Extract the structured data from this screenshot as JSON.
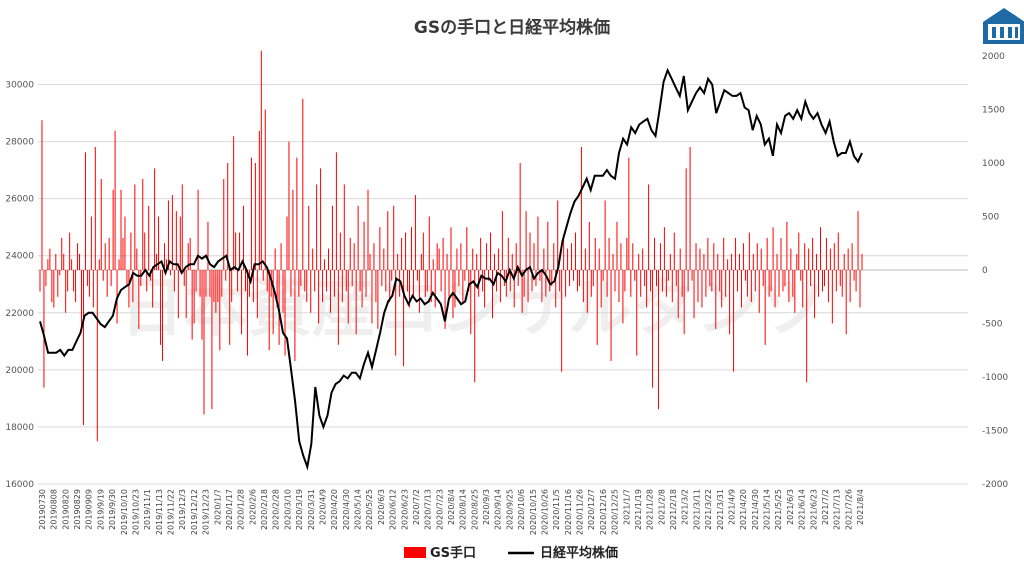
{
  "chart_data": {
    "type": "bar+line",
    "title": "GSの手口と日経平均株価",
    "watermark": "日本資産コンサルタンツ",
    "left_axis": {
      "ticks": [
        16000,
        18000,
        20000,
        22000,
        24000,
        26000,
        28000,
        30000
      ],
      "ylim": [
        16000,
        31000
      ]
    },
    "right_axis": {
      "ticks": [
        -2000,
        -1500,
        -1000,
        -500,
        0,
        500,
        1000,
        1500,
        2000
      ],
      "ylim": [
        -2000,
        2000
      ]
    },
    "x_tick_labels": [
      "20190730",
      "20190808",
      "20190820",
      "20190829",
      "20190909",
      "2019/9/19",
      "2019/9/30",
      "2019/10/10",
      "2019/10/23",
      "2019/11/1",
      "2019/11/13",
      "2019/11/22",
      "2019/12/3",
      "2019/12/12",
      "2019/12/23",
      "2020/1/7",
      "2020/1/17",
      "2020/1/28",
      "2020/2/6",
      "2020/2/18",
      "2020/2/28",
      "2020/3/10",
      "2020/3/19",
      "2020/3/31",
      "2020/4/9",
      "2020/4/20",
      "2020/4/30",
      "2020/5/14",
      "2020/5/25",
      "2020/6/3",
      "2020/6/12",
      "2020/6/23",
      "2020/7/2",
      "2020/7/13",
      "2020/7/23",
      "2020/8/4",
      "2020/8/14",
      "2020/8/25",
      "2020/9/3",
      "2020/9/14",
      "2020/9/25",
      "2020/10/6",
      "2020/10/15",
      "2020/10/26",
      "2020/11/5",
      "2020/11/16",
      "2020/11/26",
      "2020/12/7",
      "2020/12/16",
      "2020/12/25",
      "2021/1/7",
      "2021/1/19",
      "2021/1/28",
      "2021/2/8",
      "2021/2/18",
      "2021/3/2",
      "2021/3/11",
      "2021/3/22",
      "2021/3/31",
      "2021/4/9",
      "2021/4/20",
      "2021/4/30",
      "2021/5/14",
      "2021/5/25",
      "2021/6/3",
      "2021/6/14",
      "2021/6/23",
      "2021/7/2",
      "2021/7/13",
      "2021/7/26",
      "2021/8/4"
    ],
    "series": [
      {
        "name": "GS手口",
        "type": "bar",
        "axis": "right",
        "color": "#ff0000",
        "values": [
          -200,
          1400,
          -1100,
          -150,
          100,
          200,
          -300,
          -350,
          150,
          -250,
          -50,
          300,
          150,
          -400,
          -200,
          350,
          100,
          -200,
          -300,
          250,
          150,
          -550,
          -1450,
          1100,
          -150,
          -250,
          500,
          -350,
          1150,
          -1600,
          100,
          850,
          -100,
          250,
          -250,
          300,
          -150,
          750,
          1300,
          -500,
          100,
          750,
          300,
          500,
          -150,
          -350,
          350,
          -300,
          800,
          200,
          -550,
          -150,
          850,
          350,
          -200,
          600,
          -100,
          -350,
          950,
          150,
          500,
          -700,
          -850,
          250,
          100,
          650,
          -50,
          700,
          -200,
          550,
          -450,
          500,
          800,
          -150,
          -450,
          250,
          300,
          -650,
          -500,
          -200,
          750,
          -250,
          -650,
          -1350,
          -250,
          450,
          -250,
          -1300,
          -300,
          -400,
          -300,
          -750,
          -250,
          850,
          -100,
          1000,
          -700,
          -300,
          1250,
          350,
          -200,
          350,
          -600,
          600,
          -200,
          -800,
          -250,
          1050,
          -300,
          1000,
          -450,
          1300,
          2050,
          -100,
          1500,
          -200,
          -750,
          -250,
          -600,
          200,
          -350,
          -700,
          250,
          -400,
          -800,
          500,
          1200,
          -250,
          750,
          -850,
          1050,
          -250,
          -150,
          1600,
          -200,
          -300,
          600,
          -400,
          200,
          -200,
          800,
          -500,
          950,
          -300,
          100,
          -200,
          200,
          -400,
          600,
          -250,
          1100,
          -700,
          350,
          -300,
          800,
          -200,
          -500,
          300,
          -150,
          250,
          -600,
          600,
          -200,
          -350,
          450,
          -250,
          750,
          150,
          -500,
          250,
          -300,
          -550,
          400,
          -150,
          200,
          -200,
          550,
          -300,
          -100,
          600,
          -800,
          150,
          -250,
          300,
          -900,
          350,
          -200,
          -350,
          400,
          -250,
          700,
          -100,
          -400,
          150,
          350,
          -250,
          -200,
          500,
          -300,
          100,
          -350,
          250,
          200,
          -200,
          300,
          -550,
          150,
          -250,
          400,
          -450,
          -350,
          200,
          -150,
          250,
          -300,
          -100,
          400,
          -200,
          -600,
          200,
          -1050,
          150,
          -250,
          300,
          -200,
          -350,
          250,
          -100,
          350,
          -450,
          150,
          -200,
          200,
          -300,
          550,
          -150,
          -250,
          300,
          -200,
          150,
          -350,
          250,
          -150,
          1000,
          -400,
          -250,
          550,
          -300,
          350,
          -200,
          250,
          -150,
          500,
          -100,
          -300,
          200,
          -250,
          450,
          -200,
          -150,
          250,
          -350,
          650,
          -200,
          -950,
          300,
          -250,
          200,
          -150,
          250,
          -100,
          350,
          -200,
          -150,
          1150,
          -300,
          200,
          -400,
          450,
          -250,
          -150,
          300,
          -700,
          200,
          -350,
          -100,
          650,
          -250,
          300,
          -850,
          150,
          -200,
          450,
          -300,
          250,
          -500,
          -200,
          300,
          1050,
          -250,
          250,
          -100,
          -800,
          150,
          -250,
          200,
          -150,
          -350,
          800,
          -200,
          -1100,
          300,
          -150,
          -1300,
          250,
          -200,
          400,
          -250,
          -100,
          150,
          -300,
          350,
          -150,
          -450,
          200,
          -250,
          -600,
          950,
          -200,
          1150,
          -100,
          -450,
          250,
          -300,
          200,
          -350,
          150,
          -250,
          300,
          -150,
          -200,
          250,
          -550,
          150,
          -200,
          -350,
          300,
          -250,
          100,
          -600,
          150,
          -950,
          300,
          -200,
          150,
          -350,
          250,
          -100,
          -250,
          350,
          -300,
          150,
          -200,
          250,
          -400,
          200,
          -150,
          -700,
          300,
          -250,
          -200,
          400,
          -350,
          150,
          -250,
          300,
          -200,
          -150,
          450,
          -300,
          200,
          -250,
          -400,
          150,
          350,
          -100,
          -350,
          250,
          -1050,
          200,
          -150,
          300,
          -450,
          150,
          -250,
          400,
          -200,
          -150,
          300,
          -300,
          200,
          -500,
          250,
          -200,
          350,
          -150,
          -250,
          150,
          -600,
          200,
          -300,
          250,
          -100,
          -200,
          550,
          -350,
          150
        ]
      },
      {
        "name": "日経平均株価",
        "type": "line",
        "axis": "left",
        "color": "#000000",
        "values": [
          21700,
          21200,
          20600,
          20600,
          20600,
          20700,
          20500,
          20700,
          20700,
          21000,
          21300,
          21900,
          22000,
          22000,
          21800,
          21600,
          21500,
          21700,
          21900,
          22500,
          22800,
          22900,
          23000,
          23400,
          23300,
          23300,
          23500,
          23300,
          23600,
          23700,
          23800,
          23400,
          23800,
          23700,
          23700,
          23400,
          23600,
          23700,
          23700,
          24000,
          23900,
          24000,
          23700,
          23600,
          23800,
          23900,
          24000,
          23500,
          23600,
          23500,
          23800,
          23500,
          23100,
          23700,
          23700,
          23800,
          23600,
          23200,
          22700,
          22100,
          21300,
          21100,
          20000,
          18900,
          17500,
          17000,
          16600,
          17400,
          19400,
          18400,
          18000,
          18400,
          19200,
          19500,
          19600,
          19800,
          19700,
          19900,
          19900,
          19700,
          20200,
          20600,
          20100,
          20700,
          21300,
          22000,
          22400,
          22600,
          23200,
          23100,
          22600,
          22300,
          22600,
          22400,
          22500,
          22300,
          22400,
          22700,
          22500,
          22300,
          21700,
          22500,
          22700,
          22500,
          22300,
          22400,
          23000,
          23100,
          22900,
          23300,
          23200,
          23200,
          23000,
          23400,
          23300,
          23100,
          23500,
          23200,
          23600,
          23300,
          23500,
          23600,
          23200,
          23400,
          23500,
          23300,
          23000,
          23100,
          23600,
          24500,
          25000,
          25500,
          25900,
          26100,
          26400,
          26700,
          26300,
          26800,
          26800,
          26800,
          27000,
          26800,
          26700,
          27600,
          28100,
          27900,
          28500,
          28300,
          28600,
          28700,
          28800,
          28400,
          28200,
          29100,
          30100,
          30500,
          30200,
          29900,
          29600,
          30300,
          29100,
          29400,
          29700,
          29900,
          29700,
          30200,
          30000,
          29000,
          29400,
          29800,
          29700,
          29600,
          29600,
          29700,
          29200,
          29100,
          28400,
          28900,
          28600,
          27900,
          28100,
          27500,
          28600,
          28300,
          28900,
          29000,
          28800,
          29100,
          28800,
          29400,
          29000,
          28800,
          29000,
          28600,
          28300,
          28700,
          28000,
          27500,
          27600,
          27600,
          28000,
          27500,
          27300,
          27600
        ]
      }
    ],
    "legend": {
      "position": "bottom",
      "entries": [
        "GS手口",
        "日経平均株価"
      ]
    },
    "grid": true
  }
}
